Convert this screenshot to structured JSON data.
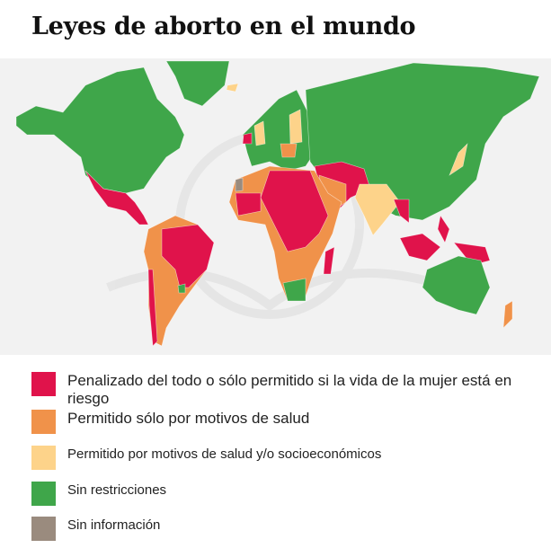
{
  "title": "Leyes de aborto en el mundo",
  "colors": {
    "penalized": "#e0134b",
    "health_only": "#f0924a",
    "health_socio": "#fdd38a",
    "unrestricted": "#3fa64a",
    "no_info": "#9a8b7e",
    "background": "#f2f2f2"
  },
  "legend": [
    {
      "label": "Penalizado del todo o sólo permitido si la vida de la mujer está en riesgo",
      "color": "#e0134b"
    },
    {
      "label": "Permitido sólo por motivos de salud",
      "color": "#f0924a"
    },
    {
      "label": "Permitido por motivos de salud y/o socioeconómicos",
      "color": "#fdd38a"
    },
    {
      "label": "Sin restricciones",
      "color": "#3fa64a"
    },
    {
      "label": "Sin información",
      "color": "#9a8b7e"
    }
  ]
}
